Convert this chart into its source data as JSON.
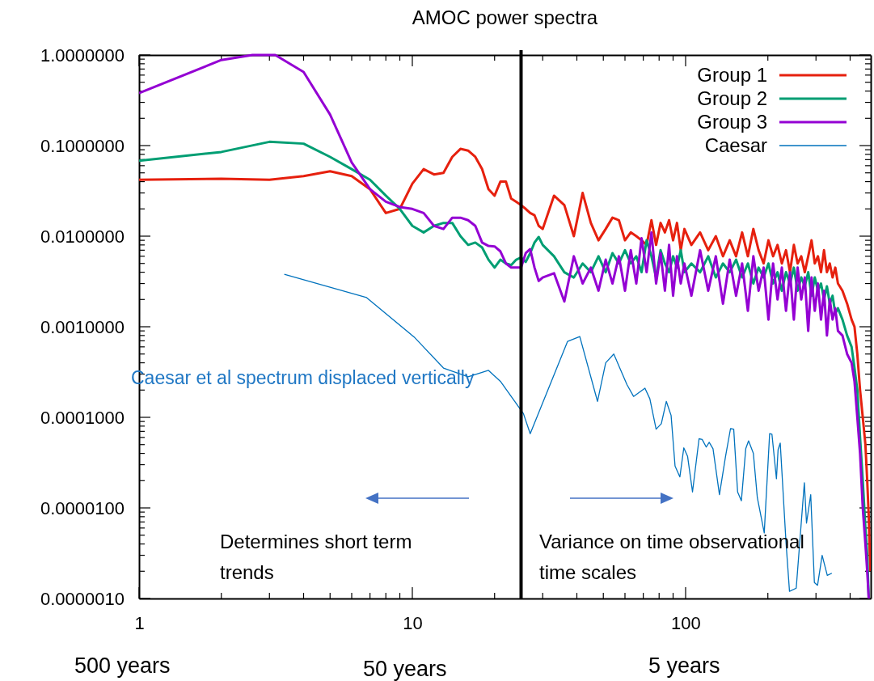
{
  "chart_data": {
    "type": "line",
    "title": "AMOC power spectra",
    "log": "xy",
    "legend": "top right",
    "line_style": "solid",
    "marker": "none",
    "xlim": [
      1,
      476
    ],
    "xticks": [
      {
        "value": 1,
        "label": "1"
      },
      {
        "value": 2,
        "label": null
      },
      {
        "value": 3,
        "label": null
      },
      {
        "value": 4,
        "label": null
      },
      {
        "value": 5,
        "label": null
      },
      {
        "value": 6,
        "label": null
      },
      {
        "value": 7,
        "label": null
      },
      {
        "value": 8,
        "label": null
      },
      {
        "value": 9,
        "label": null
      },
      {
        "value": 10,
        "label": "10"
      },
      {
        "value": 20,
        "label": null
      },
      {
        "value": 30,
        "label": null
      },
      {
        "value": 40,
        "label": null
      },
      {
        "value": 50,
        "label": null
      },
      {
        "value": 60,
        "label": null
      },
      {
        "value": 70,
        "label": null
      },
      {
        "value": 80,
        "label": null
      },
      {
        "value": 90,
        "label": null
      },
      {
        "value": 100,
        "label": "100"
      },
      {
        "value": 200,
        "label": null
      },
      {
        "value": 300,
        "label": null
      },
      {
        "value": 400,
        "label": null
      }
    ],
    "ylim": [
      1e-06,
      1
    ],
    "yticks": [
      {
        "value": 1,
        "label": "1.0000000"
      },
      {
        "value": 0.9,
        "label": null
      },
      {
        "value": 0.8,
        "label": null
      },
      {
        "value": 0.7,
        "label": null
      },
      {
        "value": 0.6,
        "label": null
      },
      {
        "value": 0.5,
        "label": null
      },
      {
        "value": 0.4,
        "label": null
      },
      {
        "value": 0.3,
        "label": null
      },
      {
        "value": 0.2,
        "label": null
      },
      {
        "value": 0.1,
        "label": "0.1000000"
      },
      {
        "value": 0.09,
        "label": null
      },
      {
        "value": 0.08,
        "label": null
      },
      {
        "value": 0.07,
        "label": null
      },
      {
        "value": 0.06,
        "label": null
      },
      {
        "value": 0.05,
        "label": null
      },
      {
        "value": 0.04,
        "label": null
      },
      {
        "value": 0.03,
        "label": null
      },
      {
        "value": 0.02,
        "label": null
      },
      {
        "value": 0.01,
        "label": "0.0100000"
      },
      {
        "value": 0.009,
        "label": null
      },
      {
        "value": 0.008,
        "label": null
      },
      {
        "value": 0.007,
        "label": null
      },
      {
        "value": 0.006,
        "label": null
      },
      {
        "value": 0.005,
        "label": null
      },
      {
        "value": 0.004,
        "label": null
      },
      {
        "value": 0.003,
        "label": null
      },
      {
        "value": 0.002,
        "label": null
      },
      {
        "value": 0.001,
        "label": "0.0010000"
      },
      {
        "value": 0.0009,
        "label": null
      },
      {
        "value": 0.0008,
        "label": null
      },
      {
        "value": 0.0007,
        "label": null
      },
      {
        "value": 0.0006,
        "label": null
      },
      {
        "value": 0.0005,
        "label": null
      },
      {
        "value": 0.0004,
        "label": null
      },
      {
        "value": 0.0003,
        "label": null
      },
      {
        "value": 0.0002,
        "label": null
      },
      {
        "value": 0.0001,
        "label": "0.0001000"
      },
      {
        "value": 9e-05,
        "label": null
      },
      {
        "value": 8e-05,
        "label": null
      },
      {
        "value": 7e-05,
        "label": null
      },
      {
        "value": 6e-05,
        "label": null
      },
      {
        "value": 5e-05,
        "label": null
      },
      {
        "value": 4e-05,
        "label": null
      },
      {
        "value": 3e-05,
        "label": null
      },
      {
        "value": 2e-05,
        "label": null
      },
      {
        "value": 1e-05,
        "label": "0.0000100"
      },
      {
        "value": 9e-06,
        "label": null
      },
      {
        "value": 8e-06,
        "label": null
      },
      {
        "value": 7e-06,
        "label": null
      },
      {
        "value": 6e-06,
        "label": null
      },
      {
        "value": 5e-06,
        "label": null
      },
      {
        "value": 4e-06,
        "label": null
      },
      {
        "value": 3e-06,
        "label": null
      },
      {
        "value": 2e-06,
        "label": null
      },
      {
        "value": 1e-06,
        "label": "0.0000010"
      }
    ],
    "ref_lines": [
      {
        "axis": "x",
        "value": 25,
        "color": "#000000"
      }
    ],
    "annotations": [
      "Caesar et al spectrum displaced vertically",
      "Determines short term trends",
      "Variance on time observational time scales",
      "500 years",
      "50 years",
      "5 years"
    ],
    "series": [
      {
        "name": "Group 1",
        "color": "#e6200e",
        "x": [
          1,
          2,
          3,
          4,
          5,
          6,
          7,
          8,
          9,
          10,
          11,
          12,
          13,
          14,
          15,
          16,
          17,
          18,
          19,
          20,
          21,
          22,
          23,
          24,
          25,
          26,
          27,
          28,
          29,
          30,
          33,
          36,
          39,
          42,
          45,
          48,
          51,
          54,
          57,
          60,
          63,
          66,
          69,
          72,
          75,
          78,
          81,
          84,
          87,
          90,
          93,
          96,
          99,
          105,
          113,
          121,
          129,
          137,
          145,
          153,
          161,
          169,
          177,
          185,
          193,
          201,
          209,
          217,
          225,
          233,
          241,
          249,
          257,
          265,
          273,
          281,
          289,
          297,
          305,
          313,
          321,
          329,
          337,
          345,
          353,
          361,
          375,
          390,
          405,
          415,
          425,
          435,
          445,
          455,
          462,
          468,
          474
        ],
        "values": [
          0.042,
          0.043,
          0.042,
          0.046,
          0.052,
          0.046,
          0.033,
          0.018,
          0.02,
          0.038,
          0.055,
          0.048,
          0.05,
          0.075,
          0.092,
          0.088,
          0.075,
          0.055,
          0.033,
          0.028,
          0.04,
          0.04,
          0.026,
          0.024,
          0.022,
          0.02,
          0.018,
          0.017,
          0.013,
          0.012,
          0.028,
          0.022,
          0.01,
          0.03,
          0.014,
          0.009,
          0.012,
          0.016,
          0.015,
          0.009,
          0.011,
          0.01,
          0.009,
          0.008,
          0.015,
          0.008,
          0.014,
          0.011,
          0.015,
          0.009,
          0.014,
          0.007,
          0.012,
          0.008,
          0.011,
          0.007,
          0.01,
          0.006,
          0.009,
          0.006,
          0.011,
          0.006,
          0.012,
          0.007,
          0.005,
          0.009,
          0.006,
          0.008,
          0.005,
          0.007,
          0.004,
          0.008,
          0.005,
          0.006,
          0.004,
          0.006,
          0.009,
          0.005,
          0.006,
          0.004,
          0.007,
          0.004,
          0.005,
          0.0035,
          0.0045,
          0.003,
          0.0025,
          0.0018,
          0.0012,
          0.001,
          0.0005,
          0.0002,
          0.0001,
          5e-05,
          2e-05,
          8e-06,
          2e-06
        ]
      },
      {
        "name": "Group 2",
        "color": "#009e73",
        "x": [
          1,
          2,
          3,
          4,
          5,
          6,
          7,
          8,
          9,
          10,
          11,
          12,
          13,
          14,
          15,
          16,
          17,
          18,
          19,
          20,
          21,
          22,
          23,
          24,
          25,
          26,
          27,
          28,
          29,
          30,
          33,
          36,
          39,
          42,
          45,
          48,
          51,
          54,
          57,
          60,
          63,
          66,
          69,
          72,
          75,
          78,
          81,
          84,
          87,
          90,
          93,
          96,
          99,
          105,
          113,
          121,
          129,
          137,
          145,
          153,
          161,
          169,
          177,
          185,
          193,
          201,
          209,
          217,
          225,
          233,
          241,
          249,
          257,
          265,
          273,
          281,
          289,
          297,
          305,
          313,
          321,
          329,
          337,
          345,
          353,
          361,
          375,
          390,
          405,
          415,
          425,
          435,
          445,
          455,
          462,
          468
        ],
        "values": [
          0.068,
          0.085,
          0.11,
          0.105,
          0.075,
          0.055,
          0.042,
          0.028,
          0.02,
          0.013,
          0.011,
          0.013,
          0.014,
          0.014,
          0.01,
          0.008,
          0.0085,
          0.0075,
          0.0055,
          0.0045,
          0.0055,
          0.005,
          0.0048,
          0.0055,
          0.0058,
          0.0052,
          0.0065,
          0.0085,
          0.0098,
          0.008,
          0.006,
          0.004,
          0.0035,
          0.005,
          0.004,
          0.006,
          0.004,
          0.0065,
          0.005,
          0.007,
          0.005,
          0.006,
          0.004,
          0.009,
          0.006,
          0.0035,
          0.007,
          0.005,
          0.004,
          0.006,
          0.0045,
          0.007,
          0.004,
          0.005,
          0.004,
          0.006,
          0.0035,
          0.005,
          0.004,
          0.0055,
          0.0035,
          0.005,
          0.003,
          0.0045,
          0.0035,
          0.005,
          0.003,
          0.004,
          0.0025,
          0.004,
          0.003,
          0.0045,
          0.0025,
          0.0035,
          0.0028,
          0.004,
          0.0022,
          0.0035,
          0.0025,
          0.003,
          0.002,
          0.0028,
          0.0018,
          0.0022,
          0.0014,
          0.0016,
          0.0012,
          0.0008,
          0.0006,
          0.00035,
          0.0002,
          6e-05,
          2e-05,
          6e-06,
          3e-06,
          1e-06
        ]
      },
      {
        "name": "Group 3",
        "color": "#9400d3",
        "x": [
          1,
          2,
          2.6,
          3.15,
          4,
          5,
          6,
          7,
          8,
          9,
          10,
          11,
          12,
          13,
          14,
          15,
          16,
          17,
          18,
          19,
          20,
          21,
          22,
          23,
          24,
          25,
          26,
          27,
          28,
          29,
          30,
          33,
          36,
          39,
          42,
          45,
          48,
          51,
          54,
          57,
          60,
          63,
          66,
          69,
          72,
          75,
          78,
          81,
          84,
          87,
          90,
          93,
          96,
          99,
          105,
          113,
          121,
          129,
          137,
          145,
          153,
          161,
          169,
          177,
          185,
          193,
          201,
          209,
          217,
          225,
          233,
          241,
          249,
          257,
          265,
          273,
          281,
          289,
          297,
          305,
          313,
          321,
          329,
          337,
          345,
          353,
          361,
          375,
          390,
          405,
          415,
          425,
          435,
          445,
          455,
          462,
          468
        ],
        "values": [
          0.38,
          0.88,
          1,
          1,
          0.65,
          0.22,
          0.065,
          0.033,
          0.024,
          0.021,
          0.02,
          0.018,
          0.013,
          0.012,
          0.016,
          0.016,
          0.015,
          0.013,
          0.0085,
          0.0078,
          0.0077,
          0.0068,
          0.005,
          0.0045,
          0.0045,
          0.0045,
          0.0065,
          0.0072,
          0.0045,
          0.0032,
          0.0035,
          0.0039,
          0.0019,
          0.006,
          0.003,
          0.0045,
          0.0025,
          0.0055,
          0.003,
          0.006,
          0.0025,
          0.007,
          0.003,
          0.0095,
          0.004,
          0.011,
          0.003,
          0.0065,
          0.0025,
          0.008,
          0.0022,
          0.006,
          0.003,
          0.005,
          0.0022,
          0.007,
          0.0025,
          0.006,
          0.0018,
          0.0055,
          0.0022,
          0.005,
          0.0015,
          0.006,
          0.0025,
          0.0045,
          0.0012,
          0.005,
          0.002,
          0.0045,
          0.0015,
          0.004,
          0.0012,
          0.0045,
          0.002,
          0.0035,
          0.0009,
          0.0035,
          0.0015,
          0.003,
          0.0012,
          0.0025,
          0.0008,
          0.002,
          0.0012,
          0.0016,
          0.0009,
          0.0008,
          0.0005,
          0.0004,
          0.00025,
          0.0001,
          4e-05,
          1e-05,
          4e-06,
          2e-06,
          1e-06
        ]
      },
      {
        "name": "Caesar",
        "color": "#0072bd",
        "x": [
          3.4,
          6.8,
          10.2,
          13,
          16,
          19,
          21,
          25.5,
          27,
          37,
          41,
          47.6,
          51,
          54.6,
          61,
          64.5,
          71,
          74,
          78,
          81.5,
          85,
          88.5,
          91.5,
          95.3,
          98.5,
          101.7,
          106,
          112,
          115,
          119,
          122,
          126,
          133,
          140,
          146,
          150,
          155,
          160,
          166,
          170,
          177,
          183,
          194,
          203,
          207,
          215,
          218,
          222,
          233,
          240,
          254,
          272,
          277,
          287,
          296,
          304,
          316,
          330,
          343
        ],
        "values": [
          0.0038,
          0.0021,
          0.00076,
          0.00035,
          0.00028,
          0.00033,
          0.00025,
          0.00011,
          6.6e-05,
          0.00069,
          0.00078,
          0.00015,
          0.0004,
          0.0005,
          0.00023,
          0.00017,
          0.00021,
          0.00016,
          7.4e-05,
          8.5e-05,
          0.00015,
          0.000105,
          2.9e-05,
          2.2e-05,
          4.6e-05,
          3.7e-05,
          1.5e-05,
          5.8e-05,
          5.7e-05,
          4.7e-05,
          5.3e-05,
          4.5e-05,
          1.4e-05,
          3.7e-05,
          7.5e-05,
          7.4e-05,
          1.5e-05,
          1.2e-05,
          4.5e-05,
          5.5e-05,
          4e-05,
          1.3e-05,
          5.3e-06,
          6.6e-05,
          6.5e-05,
          2.1e-05,
          4.4e-05,
          5.2e-05,
          4.2e-06,
          1.2e-06,
          1.3e-06,
          1.9e-05,
          6.8e-06,
          1.4e-05,
          1.5e-06,
          1.4e-06,
          3e-06,
          1.8e-06,
          1.9e-06
        ]
      }
    ]
  }
}
